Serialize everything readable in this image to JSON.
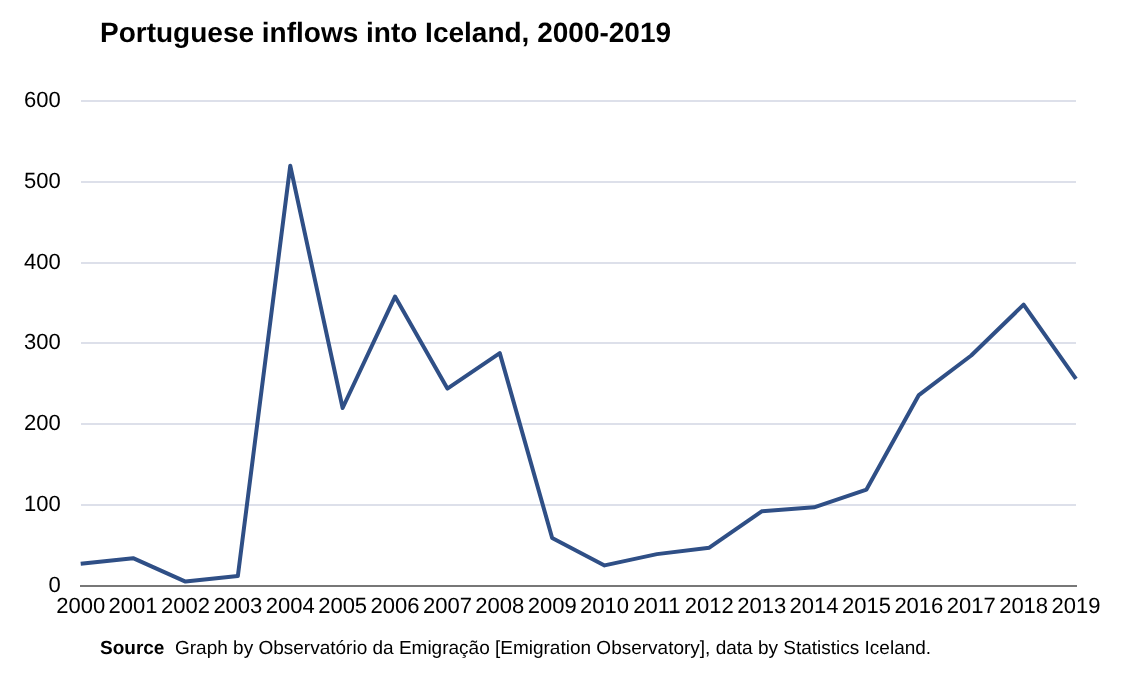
{
  "chart_data": {
    "type": "line",
    "title": "Portuguese inflows into Iceland, 2000-2019",
    "categories": [
      "2000",
      "2001",
      "2002",
      "2003",
      "2004",
      "2005",
      "2006",
      "2007",
      "2008",
      "2009",
      "2010",
      "2011",
      "2012",
      "2013",
      "2014",
      "2015",
      "2016",
      "2017",
      "2018",
      "2019"
    ],
    "series": [
      {
        "color": "#2f4f86",
        "values": [
          27,
          34,
          5,
          12,
          520,
          220,
          358,
          244,
          288,
          59,
          25,
          39,
          47,
          92,
          97,
          119,
          236,
          285,
          348,
          256
        ]
      }
    ],
    "ylim": [
      0,
      600
    ],
    "yticks": [
      0,
      100,
      200,
      300,
      400,
      500,
      600
    ],
    "grid": "y",
    "legend": false,
    "marker": "none",
    "line_style": "solid",
    "annotations": [
      "Source  Graph by Observatório da Emigração [Emigration Observatory], data by Statistics Iceland."
    ]
  }
}
